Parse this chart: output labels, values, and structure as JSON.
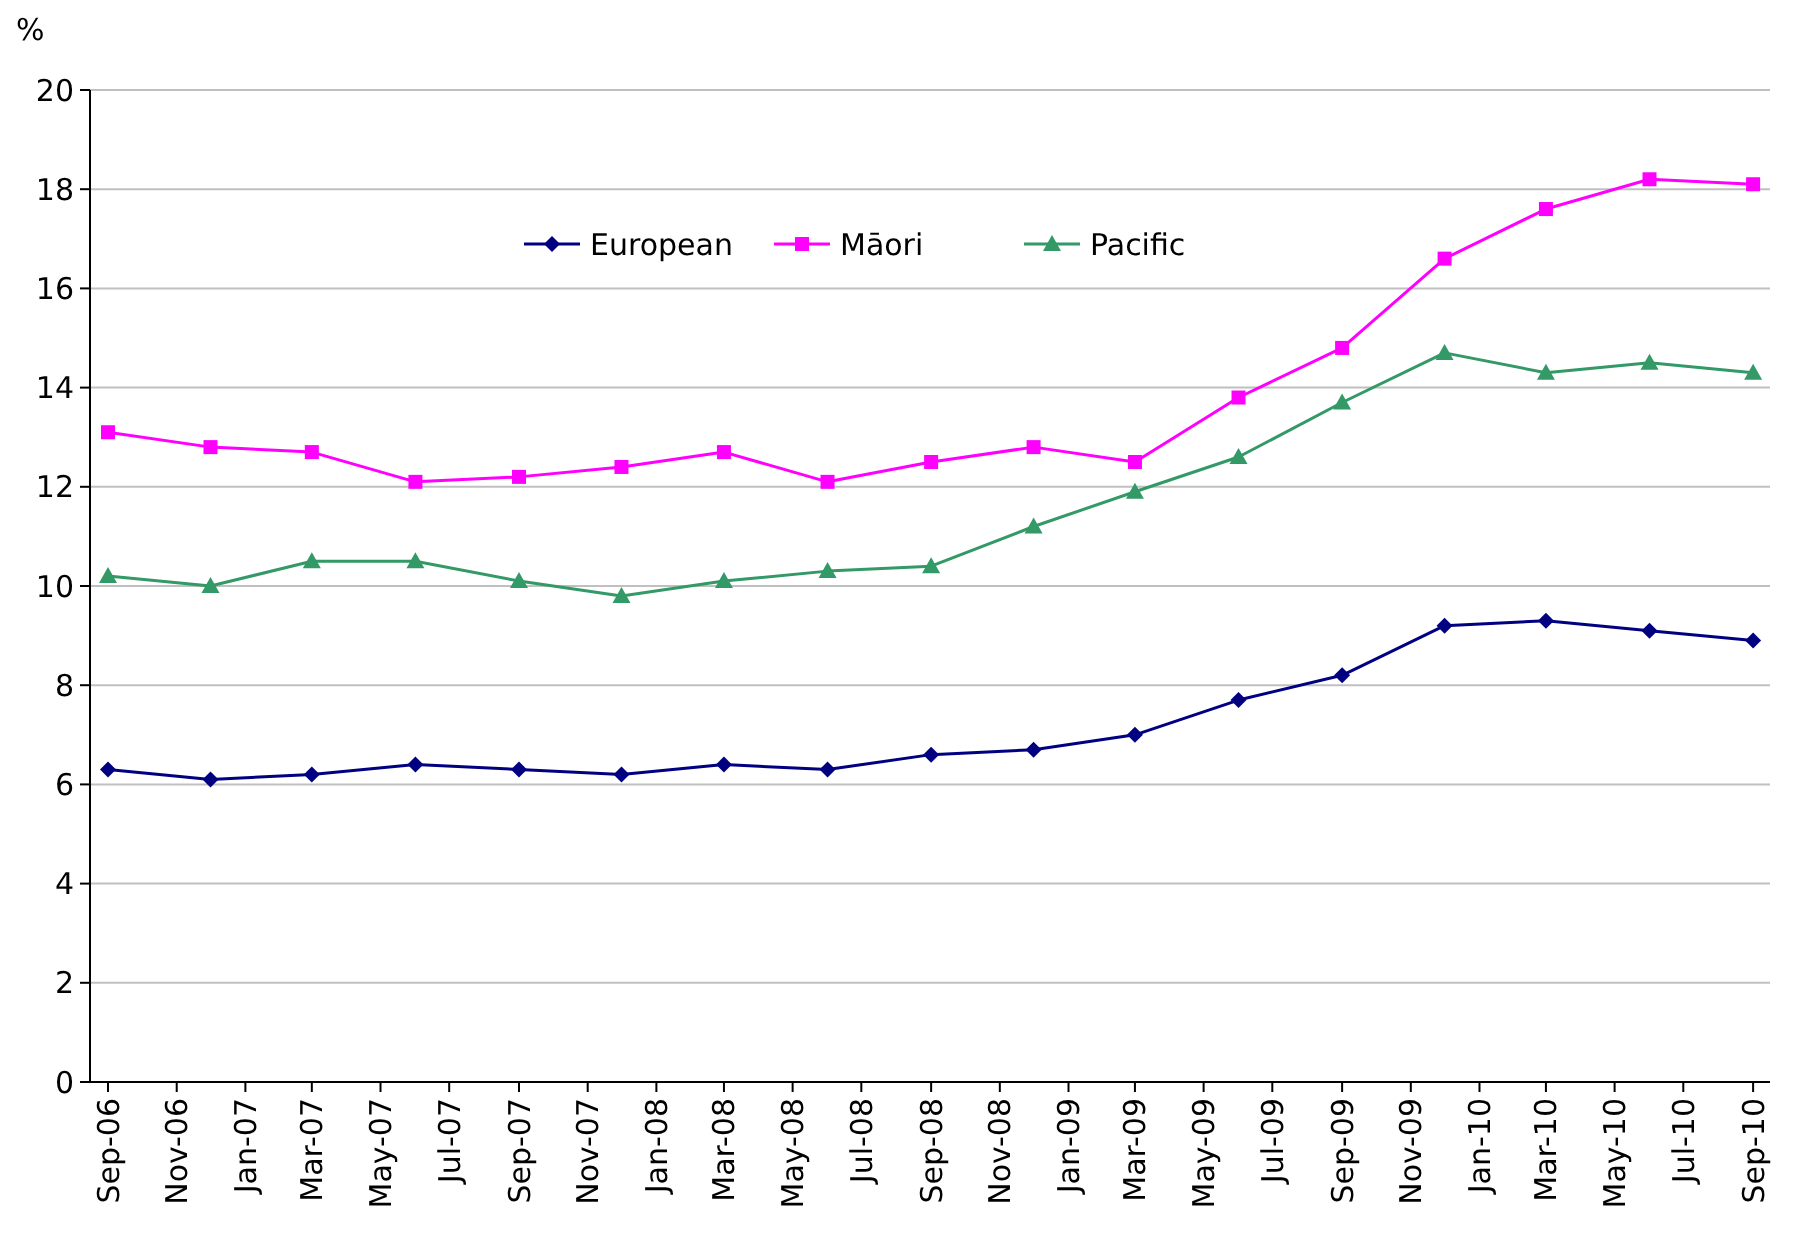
{
  "chart_data": {
    "type": "line",
    "ylabel": "%",
    "x": [
      "2006-09",
      "2006-12",
      "2007-03",
      "2007-06",
      "2007-09",
      "2007-12",
      "2008-03",
      "2008-06",
      "2008-09",
      "2008-12",
      "2009-03",
      "2009-06",
      "2009-09",
      "2009-12",
      "2010-03",
      "2010-06",
      "2010-09"
    ],
    "series": [
      {
        "name": "European",
        "color": "#000080",
        "marker": "diamond",
        "values": [
          6.3,
          6.1,
          6.2,
          6.4,
          6.3,
          6.2,
          6.4,
          6.3,
          6.6,
          6.7,
          7.0,
          7.7,
          8.2,
          9.2,
          9.3,
          9.1,
          8.9
        ]
      },
      {
        "name": "Māori",
        "color": "#ff00ff",
        "marker": "square",
        "values": [
          13.1,
          12.8,
          12.7,
          12.1,
          12.2,
          12.4,
          12.7,
          12.1,
          12.5,
          12.8,
          12.5,
          13.8,
          14.8,
          16.6,
          17.6,
          18.2,
          18.1
        ]
      },
      {
        "name": "Pacific",
        "color": "#339966",
        "marker": "triangle",
        "values": [
          10.2,
          10.0,
          10.5,
          10.5,
          10.1,
          9.8,
          10.1,
          10.3,
          10.4,
          11.2,
          11.9,
          12.6,
          13.7,
          14.7,
          14.3,
          14.5,
          14.3
        ]
      }
    ],
    "xlim": [
      "2006-08-16",
      "2010-09-16"
    ],
    "xticks": [
      {
        "value": "2006-09",
        "label": "Sep-06"
      },
      {
        "value": "2006-11",
        "label": "Nov-06"
      },
      {
        "value": "2007-01",
        "label": "Jan-07"
      },
      {
        "value": "2007-03",
        "label": "Mar-07"
      },
      {
        "value": "2007-05",
        "label": "May-07"
      },
      {
        "value": "2007-07",
        "label": "Jul-07"
      },
      {
        "value": "2007-09",
        "label": "Sep-07"
      },
      {
        "value": "2007-11",
        "label": "Nov-07"
      },
      {
        "value": "2008-01",
        "label": "Jan-08"
      },
      {
        "value": "2008-03",
        "label": "Mar-08"
      },
      {
        "value": "2008-05",
        "label": "May-08"
      },
      {
        "value": "2008-07",
        "label": "Jul-08"
      },
      {
        "value": "2008-09",
        "label": "Sep-08"
      },
      {
        "value": "2008-11",
        "label": "Nov-08"
      },
      {
        "value": "2009-01",
        "label": "Jan-09"
      },
      {
        "value": "2009-03",
        "label": "Mar-09"
      },
      {
        "value": "2009-05",
        "label": "May-09"
      },
      {
        "value": "2009-07",
        "label": "Jul-09"
      },
      {
        "value": "2009-09",
        "label": "Sep-09"
      },
      {
        "value": "2009-11",
        "label": "Nov-09"
      },
      {
        "value": "2010-01",
        "label": "Jan-10"
      },
      {
        "value": "2010-03",
        "label": "Mar-10"
      },
      {
        "value": "2010-05",
        "label": "May-10"
      },
      {
        "value": "2010-07",
        "label": "Jul-10"
      },
      {
        "value": "2010-09",
        "label": "Sep-10"
      }
    ],
    "ylim": [
      0,
      20
    ],
    "yticks": [
      0,
      2,
      4,
      6,
      8,
      10,
      12,
      14,
      16,
      18,
      20
    ],
    "grid": "y",
    "legend": "top",
    "line_style": "solid"
  }
}
